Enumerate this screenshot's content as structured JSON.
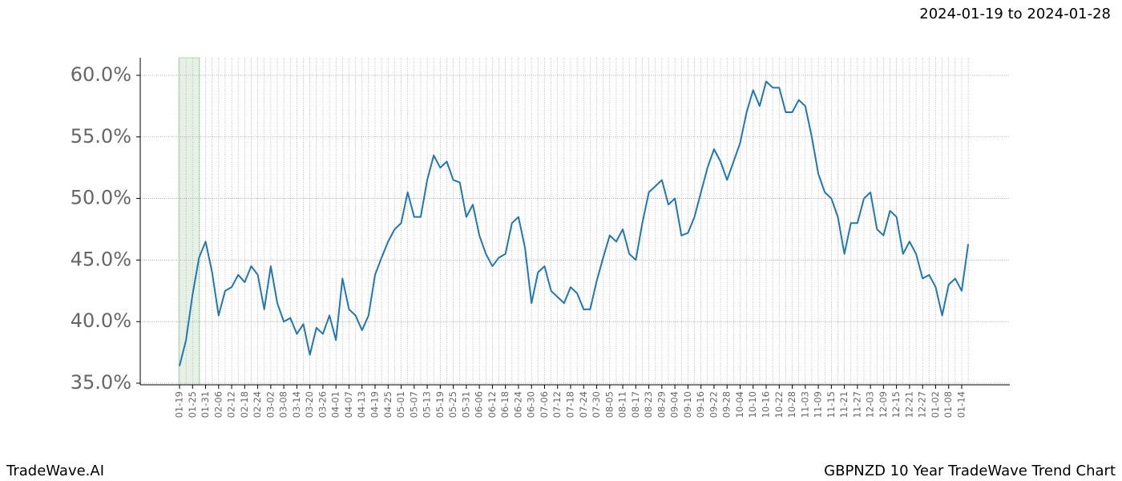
{
  "header": {
    "date_range": "2024-01-19 to 2024-01-28"
  },
  "footer": {
    "brand": "TradeWave.AI",
    "chart_title": "GBPNZD 10 Year TradeWave Trend Chart"
  },
  "chart_data": {
    "type": "line",
    "color": "#1f77b4",
    "grid": true,
    "ylim": [
      34.87,
      61.43
    ],
    "yticks": [
      {
        "value": 35,
        "label": "35.0%"
      },
      {
        "value": 40,
        "label": "40.0%"
      },
      {
        "value": 45,
        "label": "45.0%"
      },
      {
        "value": 50,
        "label": "50.0%"
      },
      {
        "value": 55,
        "label": "55.0%"
      },
      {
        "value": 60,
        "label": "60.0%"
      }
    ],
    "categories": [
      "01-19",
      null,
      "01-25",
      null,
      "01-31",
      null,
      "02-06",
      null,
      "02-12",
      null,
      "02-18",
      null,
      "02-24",
      null,
      "03-02",
      null,
      "03-08",
      null,
      "03-14",
      null,
      "03-20",
      null,
      "03-26",
      null,
      "04-01",
      null,
      "04-07",
      null,
      "04-13",
      null,
      "04-19",
      null,
      "04-25",
      null,
      "05-01",
      null,
      "05-07",
      null,
      "05-13",
      null,
      "05-19",
      null,
      "05-25",
      null,
      "05-31",
      null,
      "06-06",
      null,
      "06-12",
      null,
      "06-18",
      null,
      "06-24",
      null,
      "06-30",
      null,
      "07-06",
      null,
      "07-12",
      null,
      "07-18",
      null,
      "07-24",
      null,
      "07-30",
      null,
      "08-05",
      null,
      "08-11",
      null,
      "08-17",
      null,
      "08-23",
      null,
      "08-29",
      null,
      "09-04",
      null,
      "09-10",
      null,
      "09-16",
      null,
      "09-22",
      null,
      "09-28",
      null,
      "10-04",
      null,
      "10-10",
      null,
      "10-16",
      null,
      "10-22",
      null,
      "10-28",
      null,
      "11-03",
      null,
      "11-09",
      null,
      "11-15",
      null,
      "11-21",
      null,
      "11-27",
      null,
      "12-03",
      null,
      "12-09",
      null,
      "12-15",
      null,
      "12-21",
      null,
      "12-27",
      null,
      "01-02",
      null,
      "01-08",
      null,
      "01-14",
      null
    ],
    "values": [
      36.4,
      38.5,
      42.2,
      45.2,
      46.5,
      44.0,
      40.5,
      42.5,
      42.8,
      43.8,
      43.2,
      44.5,
      43.8,
      41.0,
      44.5,
      41.5,
      40.0,
      40.3,
      39.0,
      39.8,
      37.3,
      39.5,
      39.0,
      40.5,
      38.5,
      43.5,
      41.0,
      40.5,
      39.3,
      40.5,
      43.8,
      45.2,
      46.5,
      47.5,
      48.0,
      50.5,
      48.5,
      48.5,
      51.5,
      53.5,
      52.5,
      53.0,
      51.5,
      51.3,
      48.5,
      49.5,
      47.0,
      45.5,
      44.5,
      45.2,
      45.5,
      48.0,
      48.5,
      46.0,
      41.5,
      44.0,
      44.5,
      42.5,
      42.0,
      41.5,
      42.8,
      42.3,
      41.0,
      41.0,
      43.3,
      45.2,
      47.0,
      46.5,
      47.5,
      45.5,
      45.0,
      48.0,
      50.5,
      51.0,
      51.5,
      49.5,
      50.0,
      47.0,
      47.2,
      48.5,
      50.5,
      52.5,
      54.0,
      53.0,
      51.5,
      53.0,
      54.5,
      57.0,
      58.8,
      57.5,
      59.5,
      59.0,
      59.0,
      57.0,
      57.0,
      58.0,
      57.5,
      55.0,
      52.0,
      50.5,
      50.0,
      48.5,
      45.5,
      48.0,
      48.0,
      50.0,
      50.5,
      47.5,
      47.0,
      49.0,
      48.5,
      45.5,
      46.5,
      45.5,
      43.5,
      43.8,
      42.8,
      40.5,
      43.0,
      43.5,
      42.5,
      46.3
    ]
  }
}
